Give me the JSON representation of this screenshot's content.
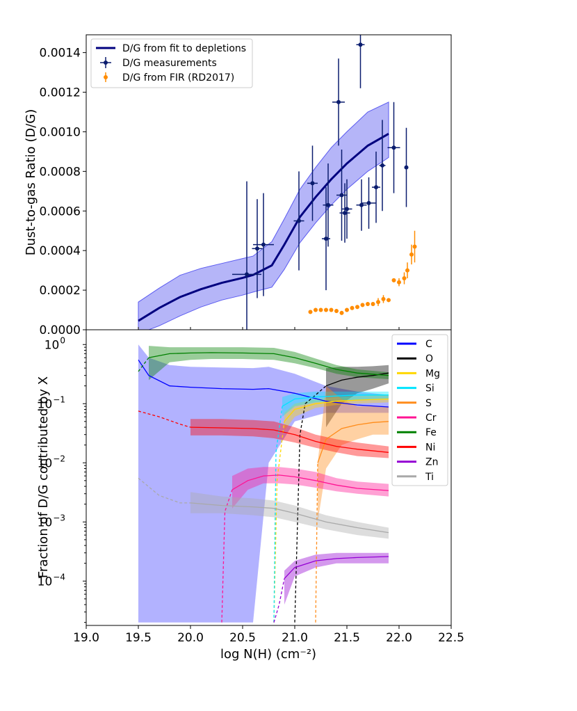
{
  "chart_data": [
    {
      "type": "line",
      "panel": "top",
      "xlabel": "",
      "ylabel": "Dust-to-gas Ratio (D/G)",
      "xlim": [
        19.0,
        22.5
      ],
      "ylim": [
        0.0,
        0.00149
      ],
      "yticks": [
        "0.0000",
        "0.0002",
        "0.0004",
        "0.0006",
        "0.0008",
        "0.0010",
        "0.0012",
        "0.0014"
      ],
      "legend_position": "top-left",
      "legend": [
        "D/G from fit to depletions",
        "D/G measurements",
        "D/G from FIR (RD2017)"
      ],
      "colors": {
        "fit": "#00007f",
        "band": "#5a5af0",
        "measurements": "#0a1c6e",
        "fir": "#ff8c00"
      },
      "fit_line": {
        "x": [
          19.5,
          19.7,
          19.9,
          20.1,
          20.3,
          20.5,
          20.6,
          20.78,
          20.9,
          21.05,
          21.2,
          21.35,
          21.5,
          21.7,
          21.9
        ],
        "y": [
          4.5e-05,
          0.00011,
          0.000165,
          0.000205,
          0.000237,
          0.000262,
          0.000277,
          0.000325,
          0.00043,
          0.00057,
          0.00067,
          0.00076,
          0.00084,
          0.00093,
          0.00099
        ],
        "band_upper": [
          0.00014,
          0.00021,
          0.000275,
          0.00031,
          0.000335,
          0.00036,
          0.000372,
          0.000445,
          0.00056,
          0.00071,
          0.00082,
          0.00092,
          0.001,
          0.0011,
          0.00115
        ],
        "band_lower": [
          -2e-05,
          2e-05,
          7e-05,
          0.000115,
          0.00015,
          0.000175,
          0.00019,
          0.000215,
          0.000305,
          0.00044,
          0.00054,
          0.00063,
          0.00071,
          0.0008,
          0.00087
        ]
      },
      "measurements": {
        "x": [
          20.54,
          20.64,
          20.7,
          21.04,
          21.17,
          21.3,
          21.32,
          21.42,
          21.45,
          21.48,
          21.5,
          21.63,
          21.64,
          21.71,
          21.78,
          21.84,
          21.95,
          22.07
        ],
        "y": [
          0.00028,
          0.00041,
          0.00043,
          0.00055,
          0.00074,
          0.00046,
          0.00063,
          0.00115,
          0.00068,
          0.00059,
          0.00061,
          0.00144,
          0.00063,
          0.00064,
          0.00072,
          0.00083,
          0.00092,
          0.00082
        ],
        "yerr": [
          0.00047,
          0.00025,
          0.00026,
          0.00025,
          0.00019,
          0.00026,
          0.00021,
          0.00022,
          0.00023,
          0.00015,
          0.00015,
          0.00022,
          0.00013,
          0.00013,
          0.00018,
          0.00023,
          0.00023,
          0.0002
        ],
        "xerr": [
          0.14,
          0.05,
          0.1,
          0.05,
          0.05,
          0.04,
          0.05,
          0.06,
          0.05,
          0.05,
          0.05,
          0.04,
          0.05,
          0.07,
          0.04,
          0.03,
          0.06,
          0.0
        ]
      },
      "fir": {
        "x": [
          21.15,
          21.2,
          21.25,
          21.3,
          21.35,
          21.4,
          21.45,
          21.5,
          21.55,
          21.6,
          21.65,
          21.7,
          21.75,
          21.8,
          21.85,
          21.9,
          21.95,
          22.0,
          22.05,
          22.08,
          22.12,
          22.15
        ],
        "y": [
          9e-05,
          0.0001,
          0.0001,
          0.0001,
          0.0001,
          9.5e-05,
          8.5e-05,
          0.0001,
          0.00011,
          0.000115,
          0.000125,
          0.00013,
          0.00013,
          0.00014,
          0.000155,
          0.00015,
          0.00025,
          0.00024,
          0.00026,
          0.0003,
          0.00038,
          0.00042
        ],
        "yerr": [
          1e-05,
          1e-05,
          1e-05,
          1e-05,
          1e-05,
          1e-05,
          1e-05,
          1e-05,
          1e-05,
          1e-05,
          1e-05,
          1e-05,
          1e-05,
          2e-05,
          2e-05,
          1e-05,
          1e-05,
          2e-05,
          3e-05,
          4e-05,
          5e-05,
          8e-05
        ]
      }
    },
    {
      "type": "line",
      "panel": "bottom",
      "xlabel": "log N(H) (cm⁻²)",
      "ylabel": "Fraction of D/G contributed by X",
      "xlim": [
        19.0,
        22.5
      ],
      "xticks": [
        "19.0",
        "19.5",
        "20.0",
        "20.5",
        "21.0",
        "21.5",
        "22.0",
        "22.5"
      ],
      "ylim_log10": [
        -4.75,
        0.25
      ],
      "yscale": "log",
      "legend_position": "top-right",
      "series": [
        {
          "name": "C",
          "color": "#0000ff",
          "x": [
            19.5,
            19.6,
            19.8,
            20.0,
            20.3,
            20.6,
            20.75,
            21.0,
            21.3,
            21.6,
            21.9
          ],
          "y": [
            0.55,
            0.3,
            0.2,
            0.19,
            0.18,
            0.175,
            0.18,
            0.15,
            0.11,
            0.095,
            0.088
          ],
          "band_upper": [
            1.0,
            0.6,
            0.45,
            0.42,
            0.41,
            0.4,
            0.42,
            0.32,
            0.2,
            0.16,
            0.14
          ],
          "band_lower": [
            2e-05,
            2e-05,
            2e-05,
            2e-05,
            2e-05,
            2e-05,
            0.01,
            0.05,
            0.07,
            0.07,
            0.07
          ],
          "dashed_before": 19.5
        },
        {
          "name": "O",
          "color": "#000000",
          "x": [
            21.0,
            21.05,
            21.1,
            21.2,
            21.3,
            21.45,
            21.6,
            21.75,
            21.9
          ],
          "y": [
            2e-05,
            0.03,
            0.1,
            0.14,
            0.2,
            0.25,
            0.28,
            0.3,
            0.33
          ],
          "band_upper": [
            null,
            null,
            null,
            null,
            0.4,
            0.42,
            0.42,
            0.43,
            0.45
          ],
          "band_lower": [
            null,
            null,
            null,
            null,
            0.04,
            0.1,
            0.15,
            0.18,
            0.22
          ],
          "dashed_before": 21.3
        },
        {
          "name": "Mg",
          "color": "#ffd700",
          "x": [
            20.8,
            20.83,
            20.9,
            21.0,
            21.2,
            21.4,
            21.6,
            21.9
          ],
          "y": [
            2e-05,
            0.005,
            0.05,
            0.08,
            0.1,
            0.11,
            0.115,
            0.12
          ],
          "band_upper": [
            null,
            null,
            0.07,
            0.1,
            0.12,
            0.13,
            0.135,
            0.14
          ],
          "band_lower": [
            null,
            null,
            0.035,
            0.06,
            0.085,
            0.095,
            0.1,
            0.105
          ],
          "dashed_before": 20.9
        },
        {
          "name": "Si",
          "color": "#00e5ff",
          "x": [
            20.8,
            20.82,
            20.88,
            21.0,
            21.2,
            21.4,
            21.6,
            21.9
          ],
          "y": [
            2e-05,
            0.015,
            0.09,
            0.12,
            0.13,
            0.135,
            0.14,
            0.14
          ],
          "band_upper": [
            null,
            null,
            0.13,
            0.15,
            0.16,
            0.16,
            0.16,
            0.16
          ],
          "band_lower": [
            null,
            null,
            0.06,
            0.09,
            0.105,
            0.11,
            0.115,
            0.12
          ],
          "dashed_before": 20.88
        },
        {
          "name": "S",
          "color": "#ff8c1a",
          "x": [
            21.2,
            21.22,
            21.3,
            21.45,
            21.6,
            21.75,
            21.9
          ],
          "y": [
            2e-05,
            0.01,
            0.025,
            0.038,
            0.044,
            0.048,
            0.05
          ],
          "band_upper": [
            null,
            0.01,
            0.2,
            0.12,
            0.09,
            0.09,
            0.09
          ],
          "band_lower": [
            null,
            0.001,
            0.008,
            0.02,
            0.025,
            0.03,
            0.03
          ],
          "dashed_before": 21.22
        },
        {
          "name": "Cr",
          "color": "#ff1493",
          "x": [
            20.3,
            20.33,
            20.4,
            20.55,
            20.7,
            20.85,
            21.0,
            21.2,
            21.4,
            21.6,
            21.9
          ],
          "y": [
            2e-05,
            0.0015,
            0.0035,
            0.005,
            0.006,
            0.0062,
            0.0058,
            0.005,
            0.0042,
            0.0037,
            0.0034
          ],
          "band_upper": [
            null,
            null,
            0.006,
            0.008,
            0.0085,
            0.0085,
            0.008,
            0.007,
            0.0055,
            0.0048,
            0.0044
          ],
          "band_lower": [
            null,
            null,
            0.0017,
            0.0035,
            0.0045,
            0.0045,
            0.0043,
            0.0038,
            0.0033,
            0.003,
            0.0027
          ],
          "dashed_before": 20.4
        },
        {
          "name": "Fe",
          "color": "#008000",
          "x": [
            19.5,
            19.6,
            19.8,
            20.0,
            20.2,
            20.5,
            20.8,
            21.0,
            21.2,
            21.4,
            21.6,
            21.9
          ],
          "y": [
            0.35,
            0.6,
            0.7,
            0.72,
            0.73,
            0.72,
            0.7,
            0.6,
            0.48,
            0.38,
            0.33,
            0.3
          ],
          "band_upper": [
            null,
            0.95,
            0.9,
            0.9,
            0.9,
            0.9,
            0.88,
            0.75,
            0.58,
            0.45,
            0.38,
            0.34
          ],
          "band_lower": [
            null,
            0.25,
            0.5,
            0.55,
            0.57,
            0.57,
            0.55,
            0.48,
            0.4,
            0.32,
            0.28,
            0.26
          ],
          "dashed_before": 19.6
        },
        {
          "name": "Ni",
          "color": "#ff0000",
          "x": [
            19.5,
            19.7,
            19.9,
            20.0,
            20.3,
            20.6,
            20.8,
            21.0,
            21.2,
            21.4,
            21.6,
            21.9
          ],
          "y": [
            0.075,
            0.06,
            0.045,
            0.04,
            0.039,
            0.038,
            0.036,
            0.03,
            0.023,
            0.019,
            0.017,
            0.015
          ],
          "band_upper": [
            null,
            null,
            null,
            0.055,
            0.055,
            0.053,
            0.05,
            0.04,
            0.03,
            0.025,
            0.022,
            0.019
          ],
          "band_lower": [
            null,
            null,
            null,
            0.029,
            0.029,
            0.028,
            0.026,
            0.022,
            0.018,
            0.015,
            0.013,
            0.012
          ],
          "dashed_before": 20.0
        },
        {
          "name": "Zn",
          "color": "#9400d3",
          "x": [
            20.8,
            20.85,
            20.9,
            21.0,
            21.2,
            21.4,
            21.6,
            21.9
          ],
          "y": [
            2e-05,
            4e-05,
            0.00011,
            0.00017,
            0.00022,
            0.00024,
            0.00025,
            0.00026
          ],
          "band_upper": [
            null,
            null,
            0.00015,
            0.00022,
            0.00028,
            0.0003,
            0.0003,
            0.0003
          ],
          "band_lower": [
            null,
            null,
            4e-05,
            0.00012,
            0.00017,
            0.0002,
            0.0002,
            0.0002
          ],
          "dashed_before": 20.9
        },
        {
          "name": "Ti",
          "color": "#a9a9a9",
          "x": [
            19.5,
            19.7,
            19.9,
            20.0,
            20.3,
            20.6,
            20.8,
            21.0,
            21.3,
            21.6,
            21.9
          ],
          "y": [
            0.0055,
            0.0028,
            0.0021,
            0.0021,
            0.0019,
            0.0018,
            0.0017,
            0.0014,
            0.001,
            0.0008,
            0.00066
          ],
          "band_upper": [
            null,
            null,
            null,
            0.0032,
            0.0027,
            0.0025,
            0.0023,
            0.0019,
            0.0013,
            0.001,
            0.0008
          ],
          "band_lower": [
            null,
            null,
            null,
            0.0014,
            0.0014,
            0.0013,
            0.0012,
            0.001,
            0.00075,
            0.0006,
            0.00052
          ],
          "dashed_before": 20.0
        }
      ]
    }
  ]
}
